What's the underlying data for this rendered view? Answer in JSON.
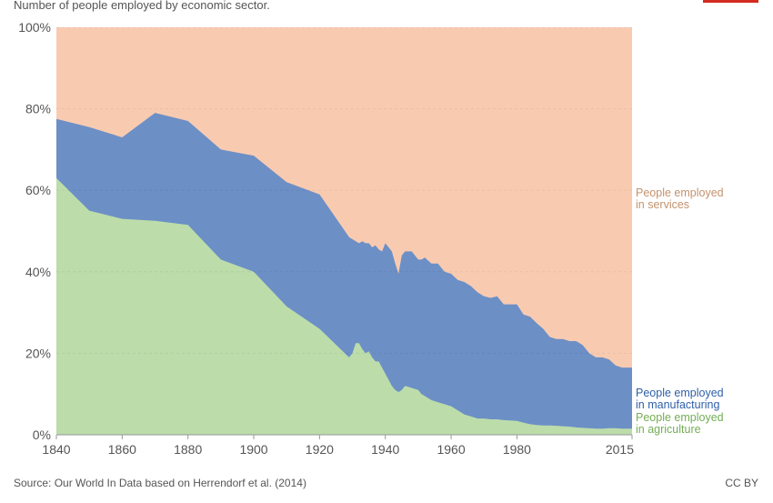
{
  "header": {
    "subtitle": "Number of people employed by economic sector.",
    "logo_color": "#d42b21"
  },
  "footer": {
    "source": "Source: Our World In Data based on Herrendorf et al. (2014)",
    "license": "CC BY"
  },
  "chart_data": {
    "type": "area",
    "stacked": true,
    "percent": true,
    "x_ticks": [
      1840,
      1860,
      1880,
      1900,
      1920,
      1940,
      1960,
      1980,
      2015
    ],
    "y_ticks": [
      0,
      20,
      40,
      60,
      80,
      100
    ],
    "y_tick_labels": [
      "0%",
      "20%",
      "40%",
      "60%",
      "80%",
      "100%"
    ],
    "xlim": [
      1840,
      2015
    ],
    "ylim": [
      0,
      100
    ],
    "grid": "horizontal",
    "legend": "right (inline labels)",
    "series": [
      {
        "name": "People employed in agriculture",
        "label_lines": [
          "People employed",
          "in agriculture"
        ],
        "color": "#bcdcaa",
        "text_color": "#74ae56",
        "points": [
          [
            1840,
            63
          ],
          [
            1850,
            55
          ],
          [
            1860,
            53
          ],
          [
            1870,
            52.5
          ],
          [
            1880,
            51.5
          ],
          [
            1890,
            43
          ],
          [
            1900,
            40
          ],
          [
            1910,
            31.5
          ],
          [
            1920,
            26
          ],
          [
            1929,
            19
          ],
          [
            1930,
            20
          ],
          [
            1931,
            22.5
          ],
          [
            1932,
            22.5
          ],
          [
            1933,
            21
          ],
          [
            1934,
            20
          ],
          [
            1935,
            20.5
          ],
          [
            1936,
            19
          ],
          [
            1937,
            18
          ],
          [
            1938,
            18
          ],
          [
            1939,
            16.5
          ],
          [
            1940,
            15
          ],
          [
            1942,
            12
          ],
          [
            1943,
            11
          ],
          [
            1944,
            10.5
          ],
          [
            1945,
            11
          ],
          [
            1946,
            12
          ],
          [
            1948,
            11.5
          ],
          [
            1950,
            11
          ],
          [
            1951,
            10
          ],
          [
            1952,
            9.5
          ],
          [
            1954,
            8.5
          ],
          [
            1956,
            8
          ],
          [
            1958,
            7.5
          ],
          [
            1960,
            7
          ],
          [
            1962,
            6
          ],
          [
            1964,
            5
          ],
          [
            1966,
            4.5
          ],
          [
            1968,
            4
          ],
          [
            1970,
            4
          ],
          [
            1972,
            3.8
          ],
          [
            1974,
            3.8
          ],
          [
            1976,
            3.6
          ],
          [
            1978,
            3.5
          ],
          [
            1980,
            3.4
          ],
          [
            1982,
            3
          ],
          [
            1984,
            2.6
          ],
          [
            1986,
            2.4
          ],
          [
            1988,
            2.3
          ],
          [
            1990,
            2.3
          ],
          [
            1992,
            2.2
          ],
          [
            1994,
            2.1
          ],
          [
            1996,
            2
          ],
          [
            1998,
            1.8
          ],
          [
            2000,
            1.7
          ],
          [
            2002,
            1.6
          ],
          [
            2004,
            1.5
          ],
          [
            2006,
            1.5
          ],
          [
            2008,
            1.6
          ],
          [
            2010,
            1.6
          ],
          [
            2012,
            1.5
          ],
          [
            2015,
            1.5
          ]
        ]
      },
      {
        "name": "People employed in manufacturing",
        "label_lines": [
          "People employed",
          "in manufacturing"
        ],
        "color": "#6c8fc6",
        "text_color": "#2f5fa8",
        "points": [
          [
            1840,
            14.5
          ],
          [
            1850,
            20.5
          ],
          [
            1860,
            20
          ],
          [
            1870,
            26.5
          ],
          [
            1880,
            25.5
          ],
          [
            1890,
            27
          ],
          [
            1900,
            28.5
          ],
          [
            1910,
            30.5
          ],
          [
            1920,
            33
          ],
          [
            1929,
            29.5
          ],
          [
            1930,
            28
          ],
          [
            1931,
            25
          ],
          [
            1932,
            24.5
          ],
          [
            1933,
            26.5
          ],
          [
            1934,
            27
          ],
          [
            1935,
            26.5
          ],
          [
            1936,
            27
          ],
          [
            1937,
            28.5
          ],
          [
            1938,
            27.5
          ],
          [
            1939,
            28.5
          ],
          [
            1940,
            32
          ],
          [
            1942,
            33
          ],
          [
            1943,
            31
          ],
          [
            1944,
            29
          ],
          [
            1945,
            33
          ],
          [
            1946,
            33
          ],
          [
            1948,
            33.5
          ],
          [
            1950,
            32
          ],
          [
            1951,
            33
          ],
          [
            1952,
            34
          ],
          [
            1954,
            33.5
          ],
          [
            1956,
            34
          ],
          [
            1958,
            32.5
          ],
          [
            1960,
            32.5
          ],
          [
            1962,
            32
          ],
          [
            1964,
            32.5
          ],
          [
            1966,
            32
          ],
          [
            1968,
            31
          ],
          [
            1970,
            30
          ],
          [
            1972,
            29.8
          ],
          [
            1974,
            30.2
          ],
          [
            1976,
            28.4
          ],
          [
            1978,
            28.5
          ],
          [
            1980,
            28.6
          ],
          [
            1982,
            26.5
          ],
          [
            1984,
            26.4
          ],
          [
            1986,
            25
          ],
          [
            1988,
            23.7
          ],
          [
            1990,
            21.7
          ],
          [
            1992,
            21.3
          ],
          [
            1994,
            21.4
          ],
          [
            1996,
            21
          ],
          [
            1998,
            21.2
          ],
          [
            2000,
            20.3
          ],
          [
            2002,
            18.4
          ],
          [
            2004,
            17.5
          ],
          [
            2006,
            17.5
          ],
          [
            2008,
            16.9
          ],
          [
            2010,
            15.4
          ],
          [
            2012,
            15
          ],
          [
            2015,
            15
          ]
        ]
      },
      {
        "name": "People employed in services",
        "label_lines": [
          "People employed",
          "in services"
        ],
        "color": "#f8cbb1",
        "text_color": "#c4926c",
        "points": []
      }
    ]
  }
}
